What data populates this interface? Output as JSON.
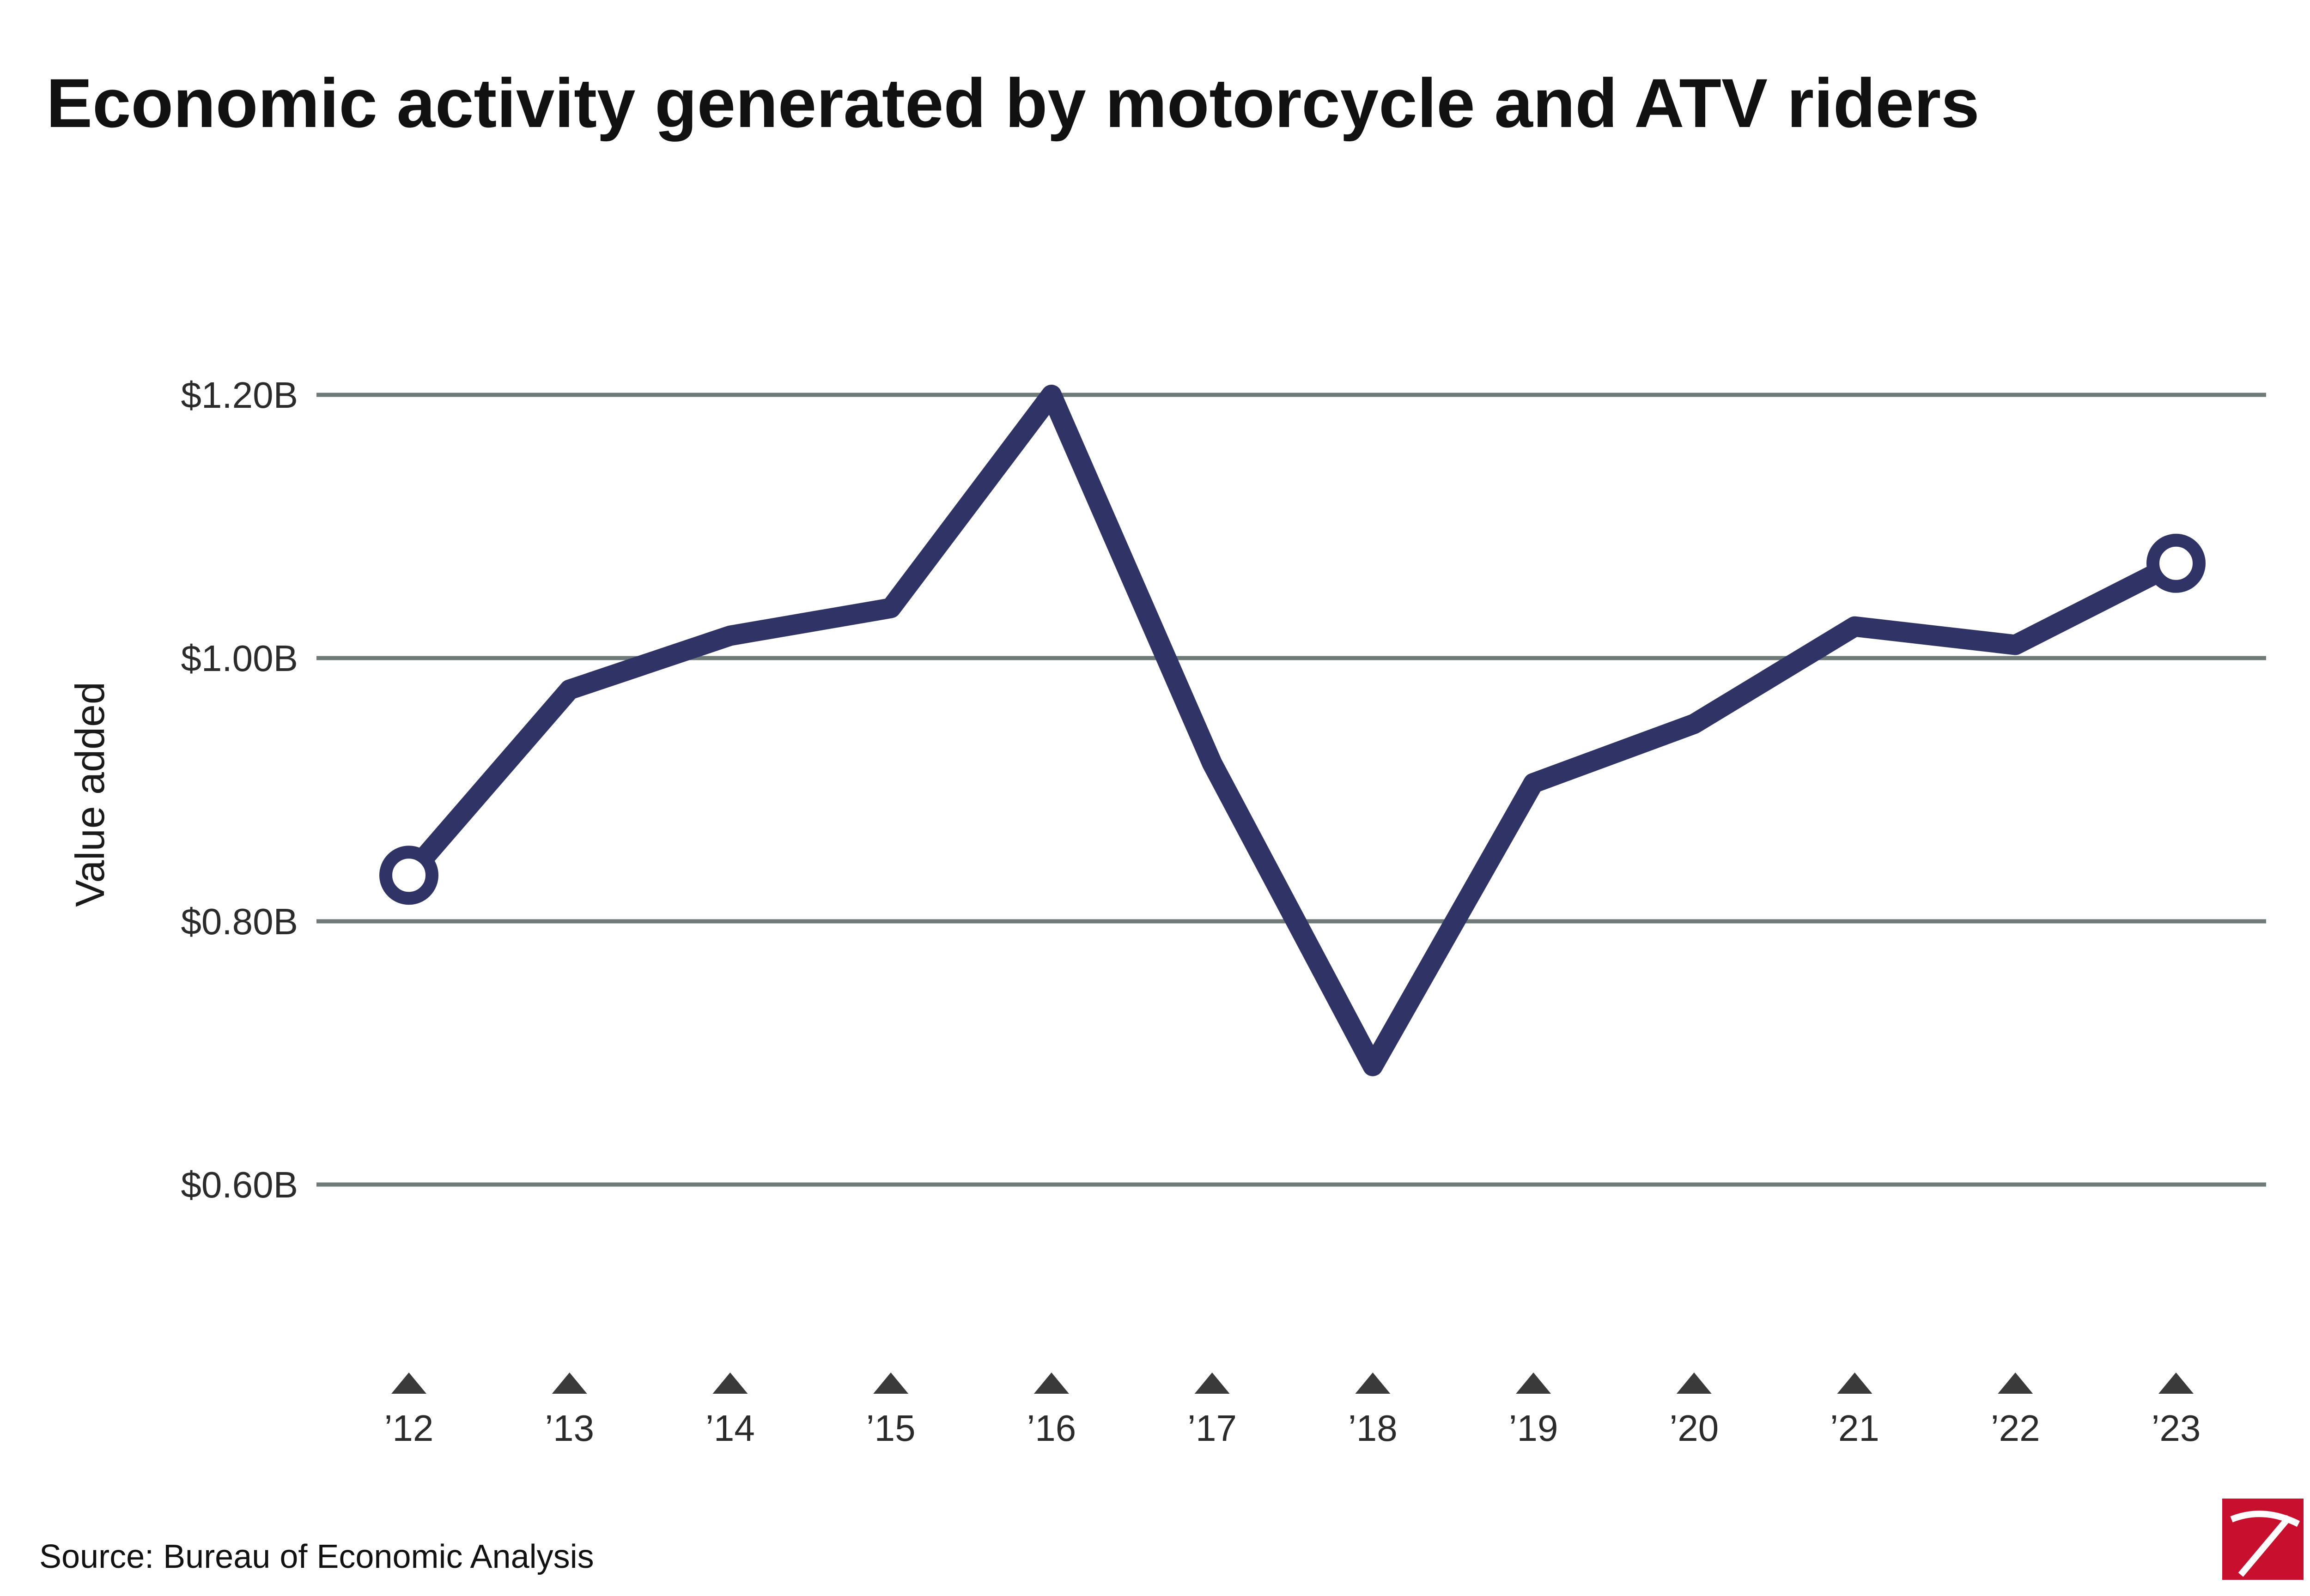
{
  "chart_data": {
    "type": "line",
    "title": "Economic activity generated by motorcycle and ATV riders",
    "ylabel": "Value added",
    "xlabel": "",
    "source": "Source: Bureau of Economic Analysis",
    "x": [
      "’12",
      "’13",
      "’14",
      "’15",
      "’16",
      "’17",
      "’18",
      "’19",
      "’20",
      "’21",
      "’22",
      "’23"
    ],
    "series": [
      {
        "values": [
          0.835,
          0.976,
          1.017,
          1.038,
          1.2,
          0.92,
          0.69,
          0.905,
          0.95,
          1.024,
          1.01,
          1.072
        ]
      }
    ],
    "ylim": [
      0.5,
      1.3
    ],
    "yticks": [
      0.6,
      0.8,
      1.0,
      1.2
    ],
    "ytick_labels": [
      "$0.60B",
      "$0.80B",
      "$1.00B",
      "$1.20B"
    ],
    "grid": true,
    "endpoint_markers": "hollow-circles",
    "x_tick_marker": "triangle-up",
    "colors": {
      "line": "#303366",
      "grid": "#6f7a78",
      "tick_marker": "#3a3a3a",
      "logo_red": "#c8102e"
    }
  },
  "logo": {
    "icon": "pickaxe-logo-icon"
  }
}
